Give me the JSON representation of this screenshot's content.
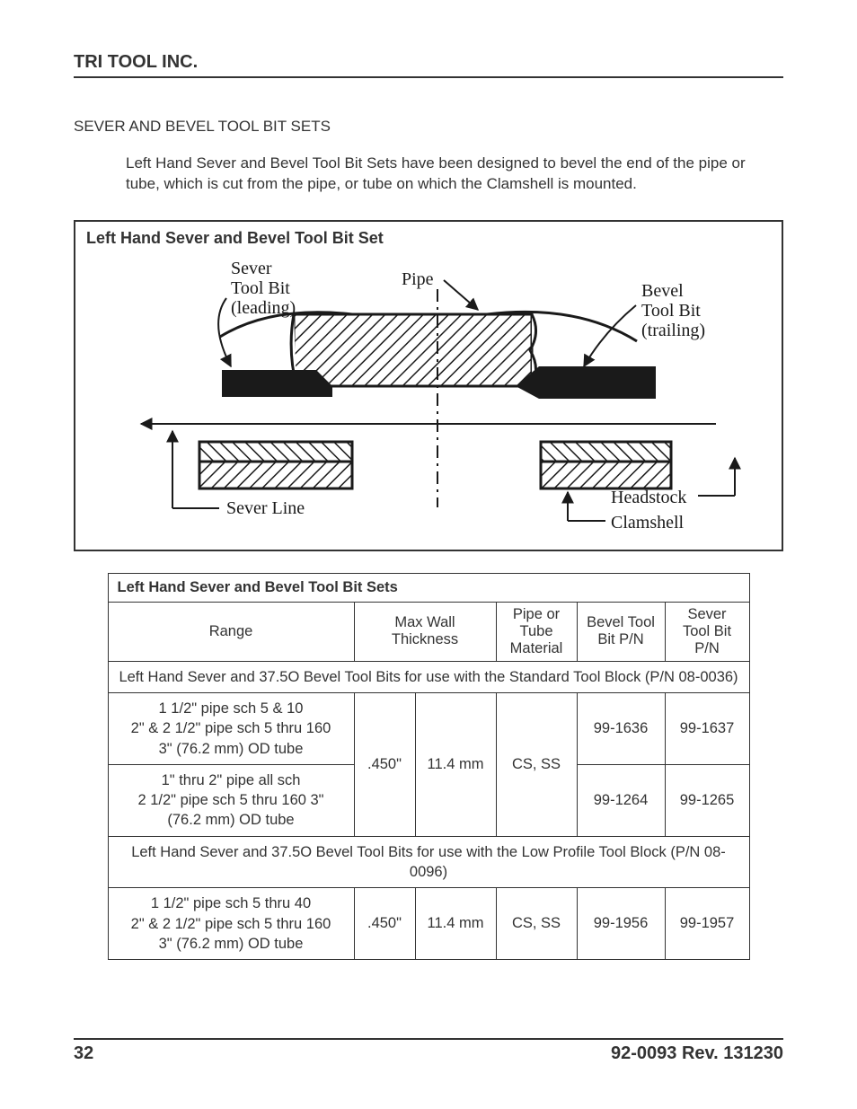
{
  "header": {
    "company": "TRI TOOL INC."
  },
  "section": {
    "heading": "SEVER AND BEVEL TOOL BIT SETS",
    "intro": "Left Hand Sever and Bevel Tool Bit Sets have been designed to bevel the end of the pipe or tube, which is cut from the pipe, or tube on which the Clamshell is mounted."
  },
  "figure": {
    "title": "Left Hand Sever and Bevel Tool Bit Set",
    "labels": {
      "sever_tool_bit": "Sever",
      "sever_tool_bit2": "Tool Bit",
      "sever_tool_bit3": "(leading)",
      "pipe": "Pipe",
      "bevel_tool_bit": "Bevel",
      "bevel_tool_bit2": "Tool Bit",
      "bevel_tool_bit3": "(trailing)",
      "sever_line": "Sever Line",
      "headstock": "Headstock",
      "clamshell": "Clamshell"
    },
    "style": {
      "stroke": "#1a1a1a",
      "stroke_width_thick": 3,
      "stroke_width_thin": 2,
      "font_family": "Georgia, Times, serif",
      "label_fontsize": 20
    }
  },
  "table": {
    "title": "Left Hand Sever and Bevel Tool Bit Sets",
    "columns": {
      "range": "Range",
      "max_wall": "Max Wall Thickness",
      "material": "Pipe or Tube Material",
      "bevel_pn": "Bevel Tool Bit P/N",
      "sever_pn": "Sever Tool Bit P/N"
    },
    "col_widths": {
      "range": 274,
      "mw1": 68,
      "mw2": 90,
      "mat": 90,
      "bevel": 98,
      "sever": 94
    },
    "section1_header": "Left Hand Sever and 37.5O Bevel Tool Bits for use with the Standard Tool Block (P/N 08-0036)",
    "rows1": [
      {
        "range": "1 1/2\" pipe sch 5 & 10\n2\" & 2 1/2\" pipe sch 5 thru 160\n3\" (76.2 mm) OD tube",
        "bevel_pn": "99-1636",
        "sever_pn": "99-1637"
      },
      {
        "range": "1\" thru 2\" pipe all sch\n2 1/2\" pipe sch 5 thru 160 3\"\n(76.2 mm) OD tube",
        "bevel_pn": "99-1264",
        "sever_pn": "99-1265"
      }
    ],
    "shared1": {
      "mw_in": ".450\"",
      "mw_mm": "11.4 mm",
      "material": "CS, SS"
    },
    "section2_header": "Left Hand Sever and 37.5O Bevel Tool Bits for use with the Low Profile Tool Block (P/N 08-0096)",
    "rows2": [
      {
        "range": "1 1/2\" pipe sch 5 thru 40\n2\" & 2 1/2\" pipe sch 5 thru 160\n3\" (76.2 mm) OD tube",
        "mw_in": ".450\"",
        "mw_mm": "11.4 mm",
        "material": "CS, SS",
        "bevel_pn": "99-1956",
        "sever_pn": "99-1957"
      }
    ]
  },
  "footer": {
    "page": "32",
    "doc": "92-0093  Rev. 131230"
  }
}
